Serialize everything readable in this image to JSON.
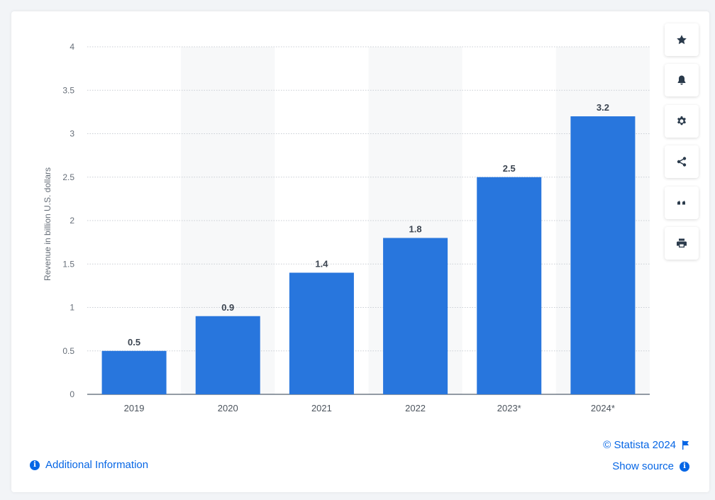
{
  "chart_data": {
    "type": "bar",
    "categories": [
      "2019",
      "2020",
      "2021",
      "2022",
      "2023*",
      "2024*"
    ],
    "values": [
      0.5,
      0.9,
      1.4,
      1.8,
      2.5,
      3.2
    ],
    "data_labels": [
      "0.5",
      "0.9",
      "1.4",
      "1.8",
      "2.5",
      "3.2"
    ],
    "title": "",
    "xlabel": "",
    "ylabel": "Revenue in billion U.S. dollars",
    "ylim": [
      0,
      4
    ],
    "yticks": [
      "0",
      "0.5",
      "1",
      "1.5",
      "2",
      "2.5",
      "3",
      "3.5",
      "4"
    ],
    "grid": true,
    "bar_color": "#2876dd",
    "alternate_band_color": "#f7f8f9"
  },
  "sidebar": {
    "buttons": [
      {
        "name": "favorite-button",
        "icon": "star-icon"
      },
      {
        "name": "notification-button",
        "icon": "bell-icon"
      },
      {
        "name": "settings-button",
        "icon": "gear-icon"
      },
      {
        "name": "share-button",
        "icon": "share-icon"
      },
      {
        "name": "cite-button",
        "icon": "quote-icon"
      },
      {
        "name": "print-button",
        "icon": "printer-icon"
      }
    ]
  },
  "footer": {
    "additional_info": "Additional Information",
    "copyright": "© Statista 2024",
    "show_source": "Show source"
  },
  "colors": {
    "accent": "#0666e5",
    "icon": "#2a3a4b"
  }
}
